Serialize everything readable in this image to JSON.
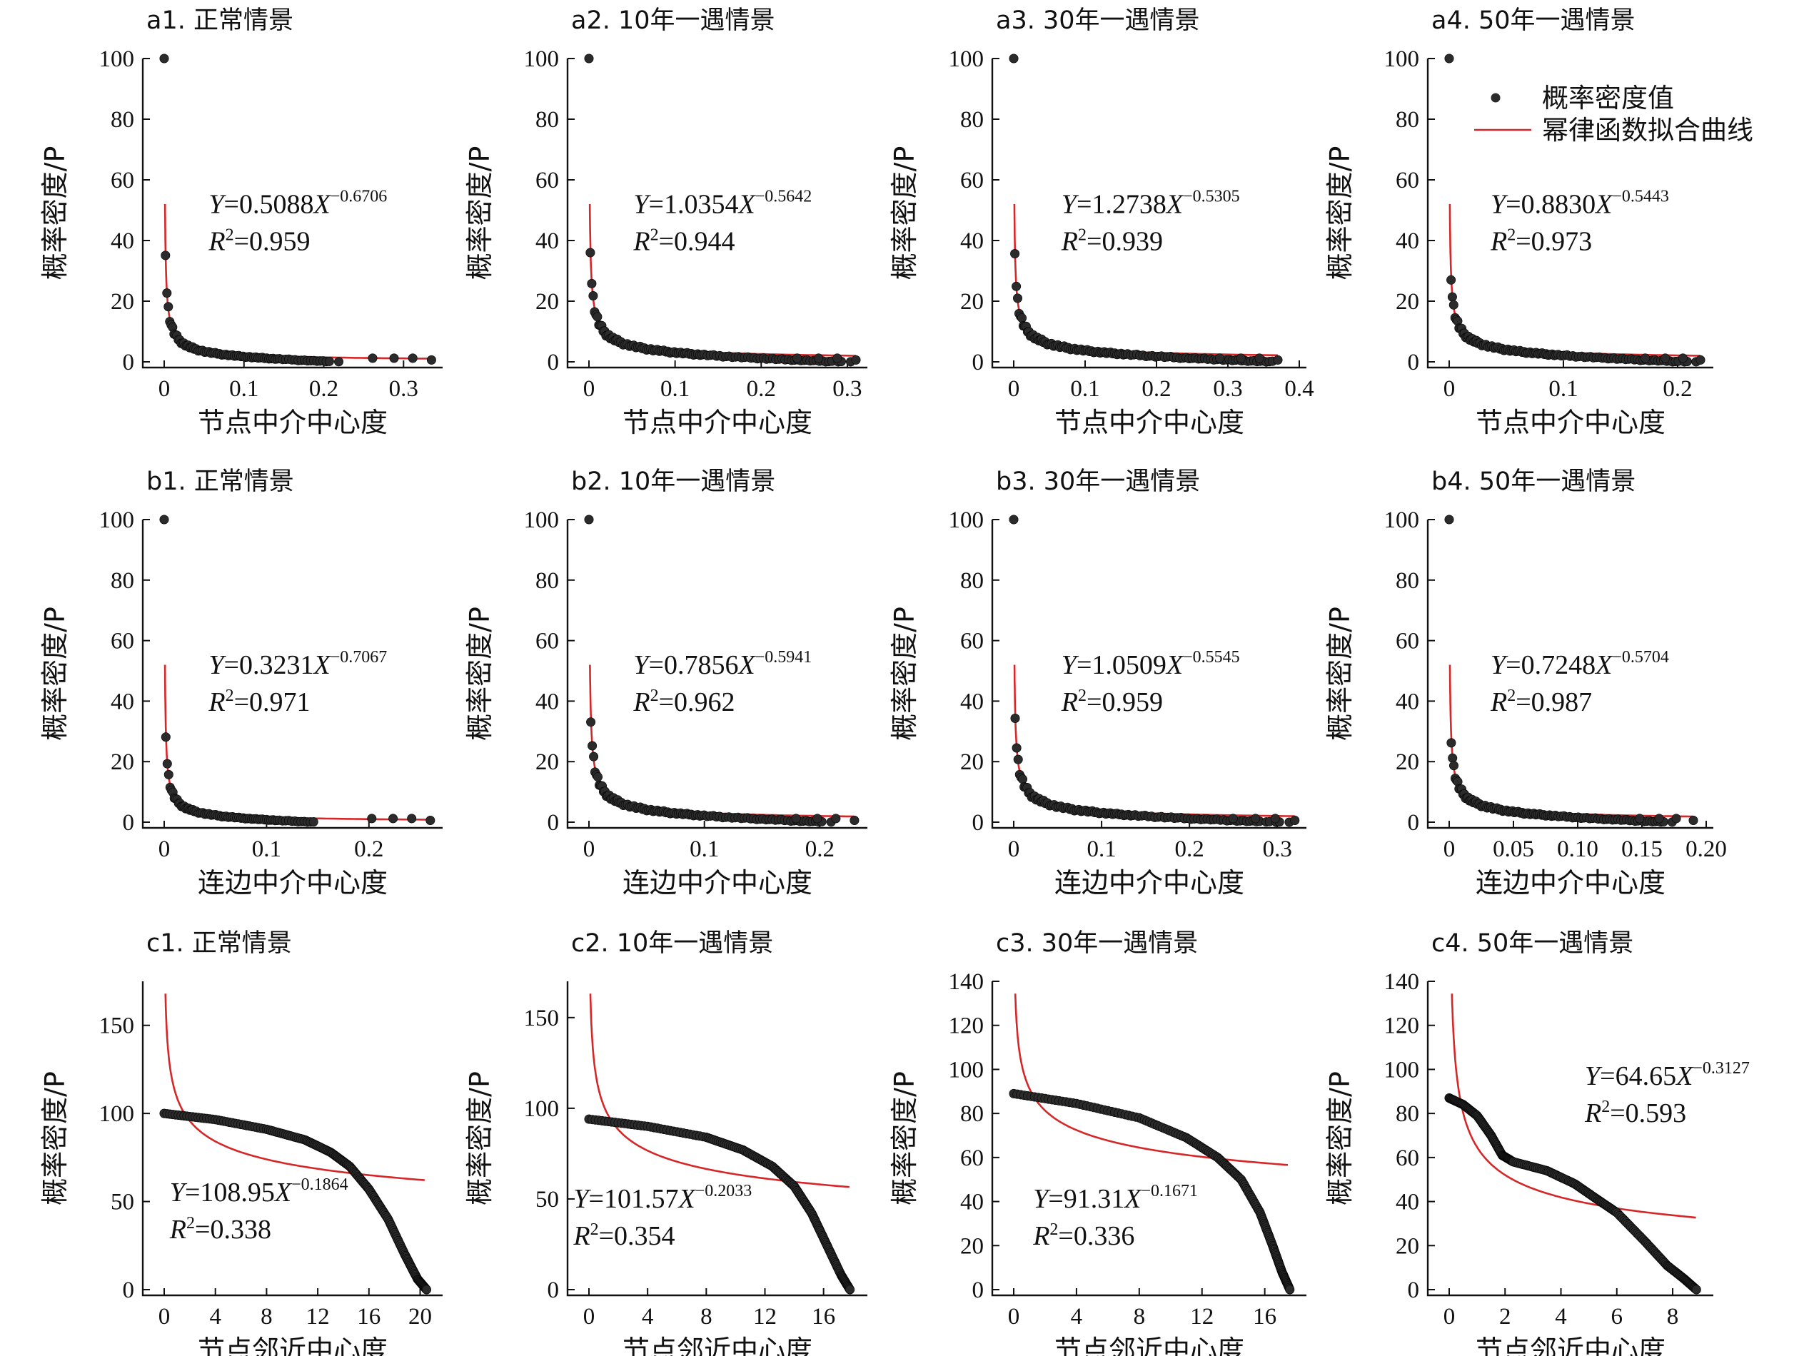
{
  "legend": {
    "points_label": "概率密度值",
    "curve_label": "幂律函数拟合曲线",
    "point_color": "#2b2b2b",
    "curve_color": "#d62728"
  },
  "chart_data": [
    {
      "type": "scatter",
      "panel": "a1",
      "title": "a1. 正常情景",
      "xlabel": "节点中介中心度",
      "ylabel": "概率密度/P",
      "xlim": [
        0,
        0.34
      ],
      "ylim": [
        0,
        100
      ],
      "xticks": [
        0,
        0.1,
        0.2,
        0.3
      ],
      "xtick_labels": [
        "0",
        "0.1",
        "0.2",
        "0.3"
      ],
      "yticks": [
        0,
        20,
        40,
        60,
        80,
        100
      ],
      "fit": {
        "a": 0.5088,
        "b": 0.6706
      },
      "r2": "0.959",
      "eq_coef": "0.5088",
      "eq_exp": "−0.6706",
      "y0": 100,
      "xmax": 0.335,
      "kind": "power"
    },
    {
      "type": "scatter",
      "panel": "a2",
      "title": "a2. 10年一遇情景",
      "xlabel": "节点中介中心度",
      "ylabel": "概率密度/P",
      "xlim": [
        0,
        0.315
      ],
      "ylim": [
        0,
        100
      ],
      "xticks": [
        0,
        0.1,
        0.2,
        0.3
      ],
      "xtick_labels": [
        "0",
        "0.1",
        "0.2",
        "0.3"
      ],
      "yticks": [
        0,
        20,
        40,
        60,
        80,
        100
      ],
      "fit": {
        "a": 1.0354,
        "b": 0.5642
      },
      "r2": "0.944",
      "eq_coef": "1.0354",
      "eq_exp": "−0.5642",
      "y0": 100,
      "xmax": 0.31,
      "kind": "power"
    },
    {
      "type": "scatter",
      "panel": "a3",
      "title": "a3. 30年一遇情景",
      "xlabel": "节点中介中心度",
      "ylabel": "概率密度/P",
      "xlim": [
        0,
        0.4
      ],
      "ylim": [
        0,
        100
      ],
      "xticks": [
        0,
        0.1,
        0.2,
        0.3,
        0.4
      ],
      "xtick_labels": [
        "0",
        "0.1",
        "0.2",
        "0.3",
        "0.4"
      ],
      "yticks": [
        0,
        20,
        40,
        60,
        80,
        100
      ],
      "fit": {
        "a": 1.2738,
        "b": 0.5305
      },
      "r2": "0.939",
      "eq_coef": "1.2738",
      "eq_exp": "−0.5305",
      "y0": 100,
      "xmax": 0.37,
      "kind": "power"
    },
    {
      "type": "scatter",
      "panel": "a4",
      "title": "a4. 50年一遇情景",
      "xlabel": "节点中介中心度",
      "ylabel": "概率密度/P",
      "xlim": [
        0,
        0.225
      ],
      "ylim": [
        0,
        100
      ],
      "xticks": [
        0,
        0.1,
        0.2
      ],
      "xtick_labels": [
        "0",
        "0.1",
        "0.2"
      ],
      "yticks": [
        0,
        20,
        40,
        60,
        80,
        100
      ],
      "fit": {
        "a": 0.883,
        "b": 0.5443
      },
      "r2": "0.973",
      "eq_coef": "0.8830",
      "eq_exp": "−0.5443",
      "y0": 100,
      "xmax": 0.22,
      "kind": "power",
      "legend": true
    },
    {
      "type": "scatter",
      "panel": "b1",
      "title": "b1. 正常情景",
      "xlabel": "连边中介中心度",
      "ylabel": "概率密度/P",
      "xlim": [
        0,
        0.265
      ],
      "ylim": [
        0,
        100
      ],
      "xticks": [
        0,
        0.1,
        0.2
      ],
      "xtick_labels": [
        "0",
        "0.1",
        "0.2"
      ],
      "yticks": [
        0,
        20,
        40,
        60,
        80,
        100
      ],
      "fit": {
        "a": 0.3231,
        "b": 0.7067
      },
      "r2": "0.971",
      "eq_coef": "0.3231",
      "eq_exp": "−0.7067",
      "y0": 100,
      "xmax": 0.26,
      "kind": "power"
    },
    {
      "type": "scatter",
      "panel": "b2",
      "title": "b2. 10年一遇情景",
      "xlabel": "连边中介中心度",
      "ylabel": "概率密度/P",
      "xlim": [
        0,
        0.235
      ],
      "ylim": [
        0,
        100
      ],
      "xticks": [
        0,
        0.1,
        0.2
      ],
      "xtick_labels": [
        "0",
        "0.1",
        "0.2"
      ],
      "yticks": [
        0,
        20,
        40,
        60,
        80,
        100
      ],
      "fit": {
        "a": 0.7856,
        "b": 0.5941
      },
      "r2": "0.962",
      "eq_coef": "0.7856",
      "eq_exp": "−0.5941",
      "y0": 100,
      "xmax": 0.23,
      "kind": "power"
    },
    {
      "type": "scatter",
      "panel": "b3",
      "title": "b3. 30年一遇情景",
      "xlabel": "连边中介中心度",
      "ylabel": "概率密度/P",
      "xlim": [
        0,
        0.325
      ],
      "ylim": [
        0,
        100
      ],
      "xticks": [
        0,
        0.1,
        0.2,
        0.3
      ],
      "xtick_labels": [
        "0",
        "0.1",
        "0.2",
        "0.3"
      ],
      "yticks": [
        0,
        20,
        40,
        60,
        80,
        100
      ],
      "fit": {
        "a": 1.0509,
        "b": 0.5545
      },
      "r2": "0.959",
      "eq_coef": "1.0509",
      "eq_exp": "−0.5545",
      "y0": 100,
      "xmax": 0.32,
      "kind": "power"
    },
    {
      "type": "scatter",
      "panel": "b4",
      "title": "b4. 50年一遇情景",
      "xlabel": "连边中介中心度",
      "ylabel": "概率密度/P",
      "xlim": [
        0,
        0.2
      ],
      "ylim": [
        0,
        100
      ],
      "xticks": [
        0,
        0.05,
        0.1,
        0.15,
        0.2
      ],
      "xtick_labels": [
        "0",
        "0.05",
        "0.10",
        "0.15",
        "0.20"
      ],
      "yticks": [
        0,
        20,
        40,
        60,
        80,
        100
      ],
      "fit": {
        "a": 0.7248,
        "b": 0.5704
      },
      "r2": "0.987",
      "eq_coef": "0.7248",
      "eq_exp": "−0.5704",
      "y0": 100,
      "xmax": 0.19,
      "kind": "power"
    },
    {
      "type": "scatter",
      "panel": "c1",
      "title": "c1. 正常情景",
      "xlabel": "节点邻近中心度",
      "ylabel": "概率密度/P",
      "xlim": [
        0,
        21.2
      ],
      "ylim": [
        0,
        175
      ],
      "xticks": [
        0,
        4,
        8,
        12,
        16,
        20
      ],
      "xtick_labels": [
        "0",
        "4",
        "8",
        "12",
        "16",
        "20"
      ],
      "yticks": [
        0,
        50,
        100,
        150
      ],
      "fit": {
        "a": 108.95,
        "b": 0.1864
      },
      "r2": "0.338",
      "eq_coef": "108.95",
      "eq_exp": "−0.1864",
      "kind": "closeness",
      "curve_knots": [
        [
          0,
          100
        ],
        [
          4,
          96.5
        ],
        [
          8,
          91
        ],
        [
          11,
          85
        ],
        [
          13,
          78
        ],
        [
          14.5,
          70
        ],
        [
          16,
          57
        ],
        [
          17.5,
          40
        ],
        [
          18.8,
          20
        ],
        [
          19.8,
          6
        ],
        [
          20.5,
          0
        ]
      ]
    },
    {
      "type": "scatter",
      "panel": "c2",
      "title": "c2. 10年一遇情景",
      "xlabel": "节点邻近中心度",
      "ylabel": "概率密度/P",
      "xlim": [
        0,
        18.5
      ],
      "ylim": [
        0,
        170
      ],
      "xticks": [
        0,
        4,
        8,
        12,
        16
      ],
      "xtick_labels": [
        "0",
        "4",
        "8",
        "12",
        "16"
      ],
      "yticks": [
        0,
        50,
        100,
        150
      ],
      "fit": {
        "a": 101.57,
        "b": 0.2033
      },
      "r2": "0.354",
      "eq_coef": "101.57",
      "eq_exp": "−0.2033",
      "kind": "closeness",
      "curve_knots": [
        [
          0,
          94
        ],
        [
          4,
          90
        ],
        [
          8,
          84
        ],
        [
          10.5,
          77
        ],
        [
          12.5,
          68
        ],
        [
          14,
          57
        ],
        [
          15.2,
          42
        ],
        [
          16.2,
          25
        ],
        [
          17.2,
          8
        ],
        [
          17.8,
          0
        ]
      ]
    },
    {
      "type": "scatter",
      "panel": "c3",
      "title": "c3. 30年一遇情景",
      "xlabel": "节点邻近中心度",
      "ylabel": "概率密度/P",
      "xlim": [
        0,
        18.2
      ],
      "ylim": [
        0,
        140
      ],
      "xticks": [
        0,
        4,
        8,
        12,
        16
      ],
      "xtick_labels": [
        "0",
        "4",
        "8",
        "12",
        "16"
      ],
      "yticks": [
        0,
        20,
        40,
        60,
        80,
        100,
        120,
        140
      ],
      "fit": {
        "a": 91.31,
        "b": 0.1671
      },
      "r2": "0.336",
      "eq_coef": "91.31",
      "eq_exp": "−0.1671",
      "kind": "closeness",
      "curve_knots": [
        [
          0,
          89
        ],
        [
          4,
          84.5
        ],
        [
          8,
          78
        ],
        [
          11,
          69
        ],
        [
          13,
          60
        ],
        [
          14.5,
          50
        ],
        [
          15.7,
          35
        ],
        [
          16.5,
          20
        ],
        [
          17.1,
          8
        ],
        [
          17.6,
          0
        ]
      ]
    },
    {
      "type": "scatter",
      "panel": "c4",
      "title": "c4. 50年一遇情景",
      "xlabel": "节点邻近中心度",
      "ylabel": "概率密度/P",
      "xlim": [
        0,
        9.2
      ],
      "ylim": [
        0,
        140
      ],
      "xticks": [
        0,
        2,
        4,
        6,
        8
      ],
      "xtick_labels": [
        "0",
        "2",
        "4",
        "6",
        "8"
      ],
      "yticks": [
        0,
        20,
        40,
        60,
        80,
        100,
        120,
        140
      ],
      "fit": {
        "a": 64.65,
        "b": 0.3127
      },
      "r2": "0.593",
      "eq_coef": "64.65",
      "eq_exp": "−0.3127",
      "kind": "closeness",
      "curve_knots": [
        [
          0,
          87
        ],
        [
          0.5,
          84
        ],
        [
          1.0,
          79
        ],
        [
          1.5,
          70
        ],
        [
          1.9,
          61
        ],
        [
          2.3,
          58
        ],
        [
          3.5,
          54
        ],
        [
          4.5,
          48
        ],
        [
          5.3,
          41
        ],
        [
          6.0,
          35
        ],
        [
          7.0,
          22
        ],
        [
          7.8,
          11
        ],
        [
          8.4,
          5
        ],
        [
          8.85,
          0
        ]
      ]
    }
  ]
}
